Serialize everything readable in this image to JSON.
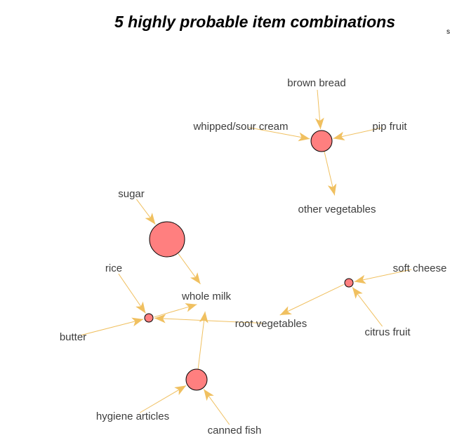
{
  "title": "5 highly probable item combinations",
  "corner_text": "s",
  "colors": {
    "edge": "#f0c060",
    "rule_node": "#ff7f7f",
    "node_stroke": "#000000",
    "label": "#3d3d3d"
  },
  "items": [
    {
      "id": "brown_bread",
      "label": "brown bread"
    },
    {
      "id": "whipped_sour_cream",
      "label": "whipped/sour cream"
    },
    {
      "id": "pip_fruit",
      "label": "pip fruit"
    },
    {
      "id": "other_vegetables",
      "label": "other vegetables"
    },
    {
      "id": "sugar",
      "label": "sugar"
    },
    {
      "id": "rice",
      "label": "rice"
    },
    {
      "id": "whole_milk",
      "label": "whole milk"
    },
    {
      "id": "butter",
      "label": "butter"
    },
    {
      "id": "root_vegetables",
      "label": "root vegetables"
    },
    {
      "id": "soft_cheese",
      "label": "soft cheese"
    },
    {
      "id": "citrus_fruit",
      "label": "citrus fruit"
    },
    {
      "id": "hygiene_articles",
      "label": "hygiene articles"
    },
    {
      "id": "canned_fish",
      "label": "canned fish"
    }
  ],
  "rules": [
    {
      "id": "rule1",
      "lhs": [
        "brown_bread",
        "whipped_sour_cream",
        "pip_fruit"
      ],
      "rhs": "other_vegetables",
      "size": 15
    },
    {
      "id": "rule2",
      "lhs": [
        "sugar"
      ],
      "rhs": "whole_milk",
      "size": 25
    },
    {
      "id": "rule3",
      "lhs": [
        "rice",
        "butter",
        "root_vegetables"
      ],
      "rhs": "whole_milk",
      "size": 6
    },
    {
      "id": "rule4",
      "lhs": [
        "soft_cheese",
        "citrus_fruit"
      ],
      "rhs": "root_vegetables",
      "size": 6
    },
    {
      "id": "rule5",
      "lhs": [
        "hygiene_articles",
        "canned_fish"
      ],
      "rhs": "whole_milk",
      "size": 15
    }
  ]
}
